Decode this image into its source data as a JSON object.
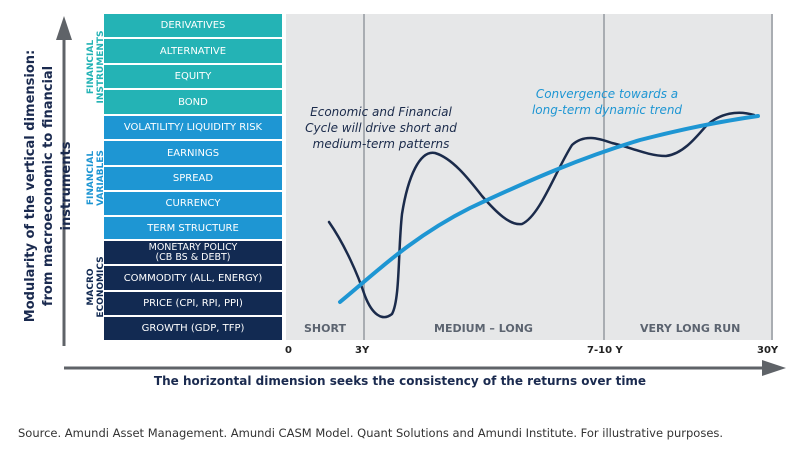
{
  "y_axis_title": "Modularity of the vertical dimension:\nfrom macroeconomic to financial instruments",
  "x_axis_title": "The horizontal dimension seeks the consistency of the returns over time",
  "source": "Source. Amundi Asset Management. Amundi CASM Model. Quant Solutions and Amundi Institute. For illustrative purposes.",
  "groups": {
    "financial_instruments": "FINANCIAL\nINSTRUMENTS",
    "financial_variables": "FINANCIAL\nVARIABLES",
    "macro_economics": "MACRO\nECONOMICS"
  },
  "boxes": {
    "financial_instruments": [
      "DERIVATIVES",
      "ALTERNATIVE",
      "EQUITY",
      "BOND"
    ],
    "financial_variables": [
      "VOLATILITY/ LIQUIDITY RISK",
      "EARNINGS",
      "SPREAD",
      "CURRENCY",
      "TERM STRUCTURE"
    ],
    "macro_economics": [
      "MONETARY POLICY\n(CB BS & DEBT)",
      "COMMODITY (ALL, ENERGY)",
      "PRICE (CPI, RPI, PPI)",
      "GROWTH (GDP, TFP)"
    ]
  },
  "zones": {
    "short": "SHORT",
    "medium_long": "MEDIUM – LONG",
    "very_long_run": "VERY LONG RUN"
  },
  "ticks": {
    "t0": "0",
    "t1": "3Y",
    "t2": "7-10 Y",
    "t3": "30Y"
  },
  "annotations": {
    "cycle": "Economic and Financial\nCycle will drive short and\nmedium-term patterns",
    "trend": "Convergence towards a\nlong-term dynamic trend"
  },
  "colors": {
    "navy": "#122a52",
    "teal": "#24b3b5",
    "blue": "#1e96d3",
    "trend_line": "#1e96d3",
    "cycle_line": "#1b2b4b",
    "panel_bg": "#e6e7e8",
    "divider": "#a9adb2",
    "axis": "#5f6368"
  }
}
